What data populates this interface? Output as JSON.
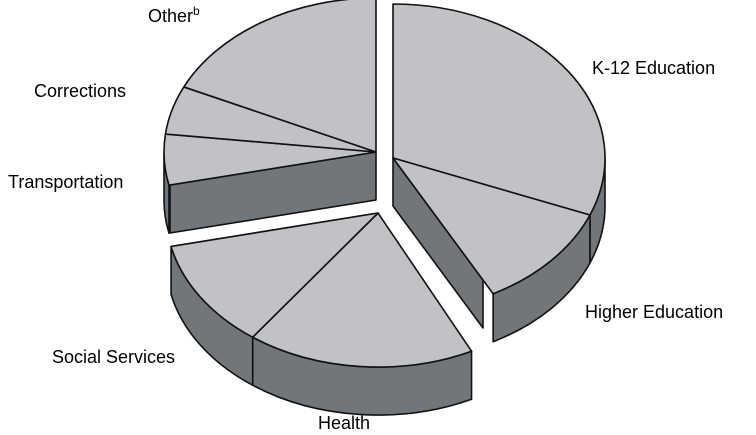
{
  "chart_data": {
    "type": "pie",
    "style": "3d-exploded",
    "slices": [
      {
        "label": "K-12 Education",
        "exploded": true
      },
      {
        "label": "Higher Education",
        "exploded": true
      },
      {
        "label": "Health",
        "exploded": true
      },
      {
        "label": "Social Services",
        "exploded": true
      },
      {
        "label": "Transportation",
        "exploded": false
      },
      {
        "label": "Corrections",
        "exploded": false
      },
      {
        "label": "Other",
        "footnote_marker": "b",
        "exploded": false
      }
    ],
    "colors": {
      "top": "#c0c2c6",
      "side": "#70767a",
      "outline": "#111111"
    }
  }
}
